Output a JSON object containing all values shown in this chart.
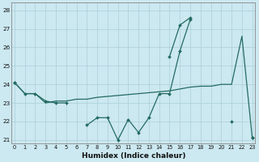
{
  "xlabel": "Humidex (Indice chaleur)",
  "x": [
    0,
    1,
    2,
    3,
    4,
    5,
    6,
    7,
    8,
    9,
    10,
    11,
    12,
    13,
    14,
    15,
    16,
    17,
    18,
    19,
    20,
    21,
    22,
    23
  ],
  "line1_y": [
    24.1,
    23.5,
    23.5,
    23.1,
    23.0,
    23.0,
    null,
    21.8,
    22.2,
    22.2,
    21.0,
    22.1,
    21.4,
    22.2,
    23.5,
    23.5,
    25.8,
    27.5,
    null,
    null,
    null,
    22.0,
    null,
    21.1
  ],
  "line2_y": [
    24.1,
    null,
    null,
    null,
    null,
    null,
    null,
    null,
    null,
    null,
    null,
    null,
    null,
    null,
    null,
    25.5,
    27.2,
    27.6,
    null,
    null,
    null,
    null,
    null,
    21.1
  ],
  "line3_y": [
    24.1,
    23.5,
    23.5,
    23.0,
    23.1,
    23.1,
    23.2,
    23.2,
    23.3,
    23.35,
    23.4,
    23.45,
    23.5,
    23.55,
    23.6,
    23.65,
    23.75,
    23.85,
    23.9,
    23.9,
    24.0,
    24.0,
    26.6,
    21.1
  ],
  "line_color": "#236b62",
  "bg_color": "#cce8f0",
  "grid_color": "#aacfda",
  "ylim": [
    20.8,
    28.4
  ],
  "xlim": [
    -0.3,
    23.3
  ],
  "yticks": [
    21,
    22,
    23,
    24,
    25,
    26,
    27,
    28
  ],
  "xticks": [
    0,
    1,
    2,
    3,
    4,
    5,
    6,
    7,
    8,
    9,
    10,
    11,
    12,
    13,
    14,
    15,
    16,
    17,
    18,
    19,
    20,
    21,
    22,
    23
  ]
}
